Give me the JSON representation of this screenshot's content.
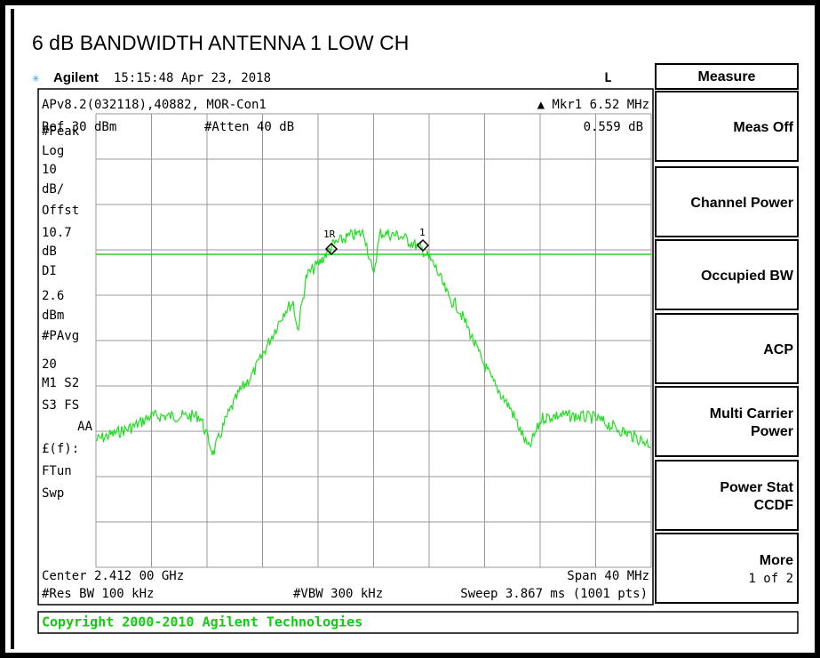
{
  "title": "6 dB BANDWIDTH ANTENNA 1 LOW CH",
  "header": {
    "brand": "Agilent",
    "datetime": "15:15:48  Apr 23, 2018",
    "mode": "L"
  },
  "menu": {
    "title": "Measure",
    "softkeys": [
      {
        "lines": [
          "Meas Off"
        ]
      },
      {
        "lines": [
          "Channel Power"
        ]
      },
      {
        "lines": [
          "Occupied BW"
        ]
      },
      {
        "lines": [
          "ACP"
        ]
      },
      {
        "lines": [
          "Multi Carrier",
          "Power"
        ]
      },
      {
        "lines": [
          "Power Stat",
          "CCDF"
        ]
      },
      {
        "lines": [
          "More",
          "1 of 2"
        ]
      }
    ]
  },
  "screen": {
    "top_left": "APv8.2(032118),40882, MOR-Con1",
    "marker": "▲ Mkr1  6.52 MHz",
    "ref": "Ref 30 dBm",
    "atten": "#Atten 40 dB",
    "marker_value": "0.559 dB",
    "left_annotations": [
      "#Peak",
      "Log",
      "10",
      "dB/",
      "Offst",
      "10.7",
      "dB",
      "DI",
      "2.6",
      "dBm",
      "#PAvg",
      "20",
      "M1  S2",
      "S3  FS",
      "AA",
      "£(f):",
      "FTun",
      "Swp"
    ],
    "marker_labels": [
      "1R",
      "1"
    ],
    "center": "Center 2.412 00 GHz",
    "span": "Span 40 MHz",
    "res_bw": "#Res BW 100 kHz",
    "vbw": "#VBW 300 kHz",
    "sweep": "Sweep 3.867 ms (1001 pts)"
  },
  "status": "Copyright 2000-2010 Agilent Technologies"
}
